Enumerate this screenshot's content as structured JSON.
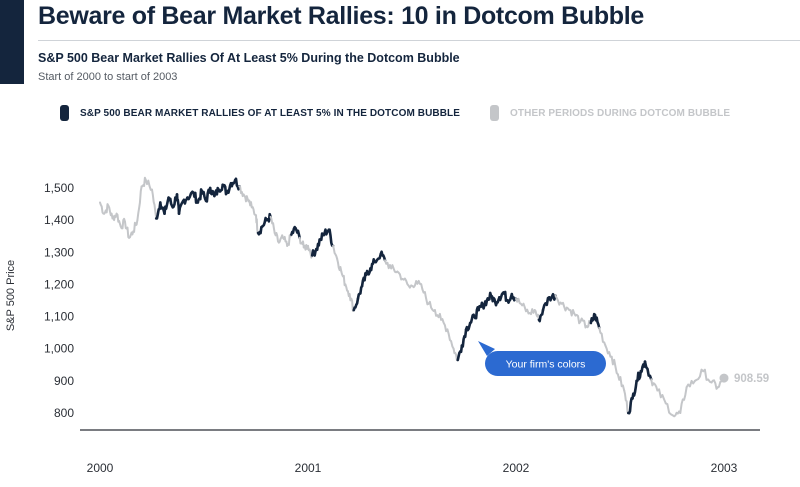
{
  "header": {
    "title": "Beware of Bear Market Rallies: 10 in Dotcom Bubble",
    "subtitle": "S&P 500 Bear Market Rallies Of At Least 5% During the Dotcom Bubble",
    "date_range": "Start of 2000 to start of 2003"
  },
  "colors": {
    "accent": "#14253d",
    "rally": "#14253d",
    "other": "#c4c6c9",
    "callout": "#2c6ad1"
  },
  "callout": {
    "text": "Your firm's colors"
  },
  "chart_data": {
    "type": "line",
    "title": "S&P 500 Bear Market Rallies Of At Least 5% During the Dotcom Bubble",
    "ylabel": "S&P 500 Price",
    "xlabel": "",
    "x_ticks": [
      "2000",
      "2001",
      "2002",
      "2003"
    ],
    "y_ticks": [
      "1,500",
      "1,400",
      "1,300",
      "1,200",
      "1,100",
      "1,000",
      "900",
      "800"
    ],
    "xlim": [
      2000.0,
      2003.0
    ],
    "ylim": [
      760,
      1550
    ],
    "grid": false,
    "legend_position": "top",
    "last_value_label": "908.59",
    "series": [
      {
        "name": "S&P 500 BEAR MARKET RALLIES OF AT LEAST 5% IN THE DOTCOM BUBBLE"
      },
      {
        "name": "OTHER PERIODS DURING DOTCOM BUBBLE"
      }
    ],
    "points": [
      [
        2000.0,
        1455,
        "other"
      ],
      [
        2000.02,
        1420,
        "other"
      ],
      [
        2000.04,
        1445,
        "other"
      ],
      [
        2000.06,
        1405,
        "other"
      ],
      [
        2000.08,
        1420,
        "other"
      ],
      [
        2000.1,
        1380,
        "other"
      ],
      [
        2000.12,
        1395,
        "other"
      ],
      [
        2000.14,
        1345,
        "other"
      ],
      [
        2000.16,
        1365,
        "other"
      ],
      [
        2000.18,
        1400,
        "other"
      ],
      [
        2000.2,
        1505,
        "other"
      ],
      [
        2000.22,
        1525,
        "other"
      ],
      [
        2000.25,
        1495,
        "other"
      ],
      [
        2000.27,
        1405,
        "rally"
      ],
      [
        2000.29,
        1455,
        "rally"
      ],
      [
        2000.31,
        1420,
        "rally"
      ],
      [
        2000.33,
        1470,
        "rally"
      ],
      [
        2000.35,
        1440,
        "rally"
      ],
      [
        2000.37,
        1480,
        "rally"
      ],
      [
        2000.38,
        1420,
        "rally"
      ],
      [
        2000.4,
        1460,
        "rally"
      ],
      [
        2000.42,
        1470,
        "rally"
      ],
      [
        2000.45,
        1485,
        "rally"
      ],
      [
        2000.47,
        1455,
        "rally"
      ],
      [
        2000.49,
        1490,
        "rally"
      ],
      [
        2000.51,
        1460,
        "rally"
      ],
      [
        2000.53,
        1500,
        "rally"
      ],
      [
        2000.55,
        1475,
        "rally"
      ],
      [
        2000.57,
        1495,
        "rally"
      ],
      [
        2000.59,
        1510,
        "rally"
      ],
      [
        2000.61,
        1485,
        "rally"
      ],
      [
        2000.63,
        1515,
        "rally"
      ],
      [
        2000.65,
        1525,
        "rally"
      ],
      [
        2000.67,
        1505,
        "other"
      ],
      [
        2000.69,
        1480,
        "other"
      ],
      [
        2000.71,
        1465,
        "other"
      ],
      [
        2000.73,
        1440,
        "other"
      ],
      [
        2000.75,
        1415,
        "other"
      ],
      [
        2000.76,
        1360,
        "rally"
      ],
      [
        2000.78,
        1380,
        "rally"
      ],
      [
        2000.8,
        1400,
        "rally"
      ],
      [
        2000.82,
        1410,
        "other"
      ],
      [
        2000.84,
        1360,
        "other"
      ],
      [
        2000.86,
        1330,
        "other"
      ],
      [
        2000.88,
        1345,
        "other"
      ],
      [
        2000.9,
        1320,
        "other"
      ],
      [
        2000.92,
        1355,
        "rally"
      ],
      [
        2000.94,
        1375,
        "rally"
      ],
      [
        2000.96,
        1345,
        "other"
      ],
      [
        2000.98,
        1315,
        "other"
      ],
      [
        2001.0,
        1320,
        "other"
      ],
      [
        2001.02,
        1290,
        "rally"
      ],
      [
        2001.04,
        1310,
        "rally"
      ],
      [
        2001.06,
        1340,
        "rally"
      ],
      [
        2001.08,
        1360,
        "rally"
      ],
      [
        2001.1,
        1370,
        "rally"
      ],
      [
        2001.12,
        1320,
        "other"
      ],
      [
        2001.14,
        1280,
        "other"
      ],
      [
        2001.16,
        1240,
        "other"
      ],
      [
        2001.18,
        1200,
        "other"
      ],
      [
        2001.2,
        1170,
        "other"
      ],
      [
        2001.22,
        1120,
        "rally"
      ],
      [
        2001.24,
        1155,
        "rally"
      ],
      [
        2001.26,
        1195,
        "rally"
      ],
      [
        2001.28,
        1230,
        "rally"
      ],
      [
        2001.3,
        1250,
        "rally"
      ],
      [
        2001.32,
        1270,
        "rally"
      ],
      [
        2001.35,
        1295,
        "rally"
      ],
      [
        2001.37,
        1275,
        "other"
      ],
      [
        2001.4,
        1250,
        "other"
      ],
      [
        2001.43,
        1240,
        "other"
      ],
      [
        2001.46,
        1215,
        "other"
      ],
      [
        2001.49,
        1190,
        "other"
      ],
      [
        2001.52,
        1210,
        "other"
      ],
      [
        2001.55,
        1185,
        "other"
      ],
      [
        2001.58,
        1140,
        "other"
      ],
      [
        2001.61,
        1120,
        "other"
      ],
      [
        2001.64,
        1090,
        "other"
      ],
      [
        2001.67,
        1060,
        "other"
      ],
      [
        2001.7,
        1000,
        "other"
      ],
      [
        2001.72,
        965,
        "rally"
      ],
      [
        2001.74,
        1010,
        "rally"
      ],
      [
        2001.76,
        1060,
        "rally"
      ],
      [
        2001.78,
        1080,
        "rally"
      ],
      [
        2001.8,
        1100,
        "rally"
      ],
      [
        2001.82,
        1120,
        "rally"
      ],
      [
        2001.84,
        1135,
        "rally"
      ],
      [
        2001.86,
        1150,
        "rally"
      ],
      [
        2001.88,
        1165,
        "rally"
      ],
      [
        2001.9,
        1145,
        "rally"
      ],
      [
        2001.92,
        1160,
        "rally"
      ],
      [
        2001.94,
        1175,
        "rally"
      ],
      [
        2001.96,
        1150,
        "rally"
      ],
      [
        2001.98,
        1170,
        "rally"
      ],
      [
        2002.0,
        1155,
        "other"
      ],
      [
        2002.03,
        1135,
        "other"
      ],
      [
        2002.06,
        1110,
        "other"
      ],
      [
        2002.09,
        1120,
        "other"
      ],
      [
        2002.11,
        1090,
        "rally"
      ],
      [
        2002.13,
        1120,
        "rally"
      ],
      [
        2002.16,
        1160,
        "rally"
      ],
      [
        2002.19,
        1165,
        "other"
      ],
      [
        2002.22,
        1140,
        "other"
      ],
      [
        2002.25,
        1125,
        "other"
      ],
      [
        2002.28,
        1110,
        "other"
      ],
      [
        2002.31,
        1085,
        "other"
      ],
      [
        2002.34,
        1070,
        "other"
      ],
      [
        2002.36,
        1080,
        "rally"
      ],
      [
        2002.38,
        1105,
        "rally"
      ],
      [
        2002.4,
        1065,
        "other"
      ],
      [
        2002.43,
        1010,
        "other"
      ],
      [
        2002.46,
        975,
        "other"
      ],
      [
        2002.49,
        920,
        "other"
      ],
      [
        2002.52,
        870,
        "other"
      ],
      [
        2002.54,
        800,
        "rally"
      ],
      [
        2002.56,
        845,
        "rally"
      ],
      [
        2002.58,
        900,
        "rally"
      ],
      [
        2002.6,
        930,
        "rally"
      ],
      [
        2002.62,
        960,
        "rally"
      ],
      [
        2002.65,
        905,
        "other"
      ],
      [
        2002.68,
        870,
        "other"
      ],
      [
        2002.72,
        830,
        "other"
      ],
      [
        2002.76,
        790,
        "other"
      ],
      [
        2002.79,
        800,
        "other"
      ],
      [
        2002.82,
        880,
        "other"
      ],
      [
        2002.86,
        900,
        "other"
      ],
      [
        2002.9,
        930,
        "other"
      ],
      [
        2002.94,
        895,
        "other"
      ],
      [
        2002.97,
        880,
        "other"
      ],
      [
        2003.0,
        908.59,
        "other"
      ]
    ]
  }
}
